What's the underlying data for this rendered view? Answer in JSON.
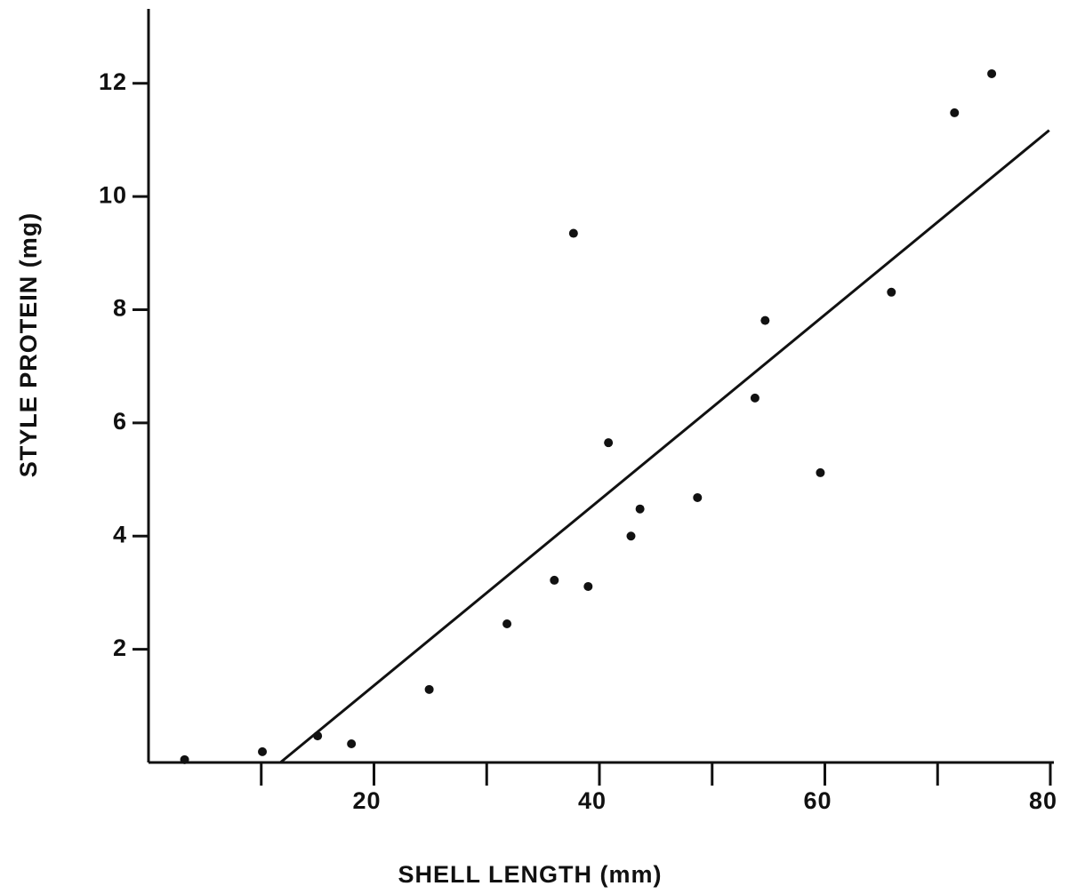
{
  "chart_data": {
    "type": "scatter",
    "x_label": "SHELL LENGTH (mm)",
    "y_label": "STYLE PROTEIN (mg)",
    "x": [
      3.2,
      10.1,
      15.0,
      18.0,
      24.9,
      31.8,
      36.0,
      37.7,
      39.0,
      40.8,
      42.8,
      43.6,
      48.7,
      53.8,
      54.7,
      59.6,
      65.9,
      71.5,
      74.8
    ],
    "y": [
      0.05,
      0.19,
      0.47,
      0.33,
      1.29,
      2.45,
      3.22,
      9.35,
      3.11,
      5.65,
      4.0,
      4.48,
      4.68,
      6.44,
      7.81,
      5.12,
      8.31,
      11.48,
      12.17
    ],
    "color": "#111111",
    "regression_line": {
      "x": [
        11.7,
        79.9
      ],
      "y": [
        0,
        11.17
      ]
    },
    "xlim": [
      0,
      80
    ],
    "xticks": [
      20,
      40,
      60,
      80
    ],
    "xminor_ticks": [
      10,
      30,
      50,
      70
    ],
    "ylim": [
      0,
      13.3
    ],
    "yticks": [
      2,
      4,
      6,
      8,
      10,
      12
    ],
    "grid": false
  }
}
